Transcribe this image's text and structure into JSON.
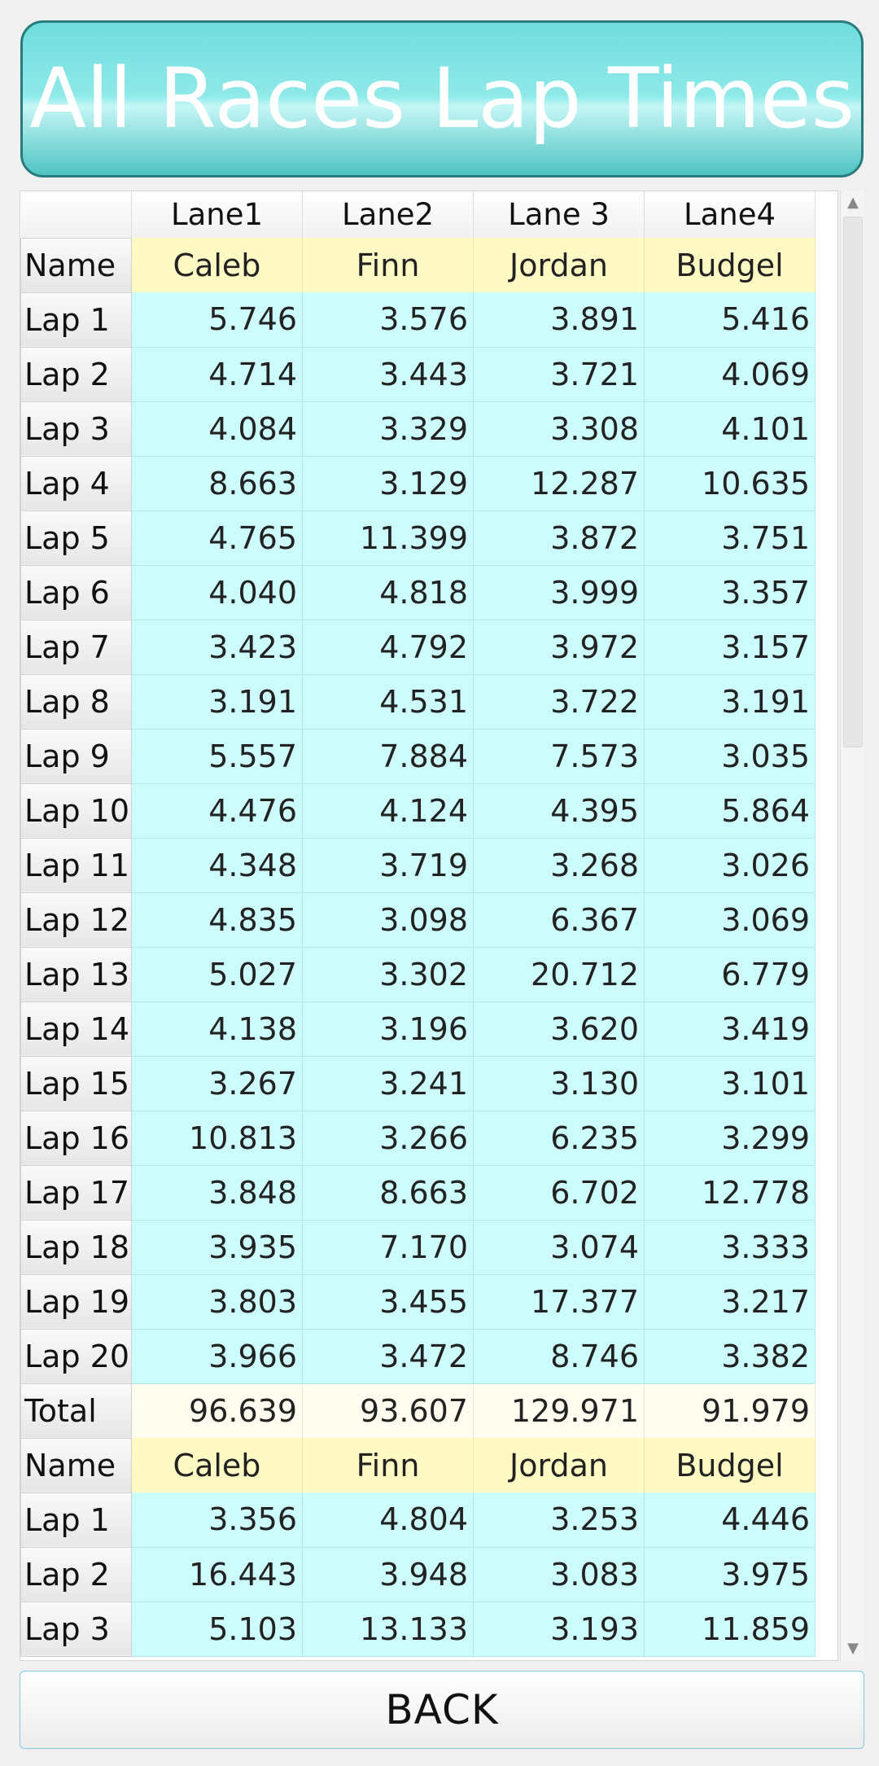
{
  "title": "All Races Lap Times",
  "columns": [
    "Lane1",
    "Lane2",
    "Lane 3",
    "Lane4"
  ],
  "name_row_label": "Name",
  "total_row_label": "Total",
  "races": [
    {
      "names": [
        "Caleb",
        "Finn",
        "Jordan",
        "Budgel"
      ],
      "laps": [
        {
          "label": "Lap 1",
          "values": [
            "5.746",
            "3.576",
            "3.891",
            "5.416"
          ]
        },
        {
          "label": "Lap 2",
          "values": [
            "4.714",
            "3.443",
            "3.721",
            "4.069"
          ]
        },
        {
          "label": "Lap 3",
          "values": [
            "4.084",
            "3.329",
            "3.308",
            "4.101"
          ]
        },
        {
          "label": "Lap 4",
          "values": [
            "8.663",
            "3.129",
            "12.287",
            "10.635"
          ]
        },
        {
          "label": "Lap 5",
          "values": [
            "4.765",
            "11.399",
            "3.872",
            "3.751"
          ]
        },
        {
          "label": "Lap 6",
          "values": [
            "4.040",
            "4.818",
            "3.999",
            "3.357"
          ]
        },
        {
          "label": "Lap 7",
          "values": [
            "3.423",
            "4.792",
            "3.972",
            "3.157"
          ]
        },
        {
          "label": "Lap 8",
          "values": [
            "3.191",
            "4.531",
            "3.722",
            "3.191"
          ]
        },
        {
          "label": "Lap 9",
          "values": [
            "5.557",
            "7.884",
            "7.573",
            "3.035"
          ]
        },
        {
          "label": "Lap 10",
          "values": [
            "4.476",
            "4.124",
            "4.395",
            "5.864"
          ]
        },
        {
          "label": "Lap 11",
          "values": [
            "4.348",
            "3.719",
            "3.268",
            "3.026"
          ]
        },
        {
          "label": "Lap 12",
          "values": [
            "4.835",
            "3.098",
            "6.367",
            "3.069"
          ]
        },
        {
          "label": "Lap 13",
          "values": [
            "5.027",
            "3.302",
            "20.712",
            "6.779"
          ]
        },
        {
          "label": "Lap 14",
          "values": [
            "4.138",
            "3.196",
            "3.620",
            "3.419"
          ]
        },
        {
          "label": "Lap 15",
          "values": [
            "3.267",
            "3.241",
            "3.130",
            "3.101"
          ]
        },
        {
          "label": "Lap 16",
          "values": [
            "10.813",
            "3.266",
            "6.235",
            "3.299"
          ]
        },
        {
          "label": "Lap 17",
          "values": [
            "3.848",
            "8.663",
            "6.702",
            "12.778"
          ]
        },
        {
          "label": "Lap 18",
          "values": [
            "3.935",
            "7.170",
            "3.074",
            "3.333"
          ]
        },
        {
          "label": "Lap 19",
          "values": [
            "3.803",
            "3.455",
            "17.377",
            "3.217"
          ]
        },
        {
          "label": "Lap 20",
          "values": [
            "3.966",
            "3.472",
            "8.746",
            "3.382"
          ]
        }
      ],
      "totals": [
        "96.639",
        "93.607",
        "129.971",
        "91.979"
      ]
    },
    {
      "names": [
        "Caleb",
        "Finn",
        "Jordan",
        "Budgel"
      ],
      "laps": [
        {
          "label": "Lap 1",
          "values": [
            "3.356",
            "4.804",
            "3.253",
            "4.446"
          ]
        },
        {
          "label": "Lap 2",
          "values": [
            "16.443",
            "3.948",
            "3.083",
            "3.975"
          ]
        },
        {
          "label": "Lap 3",
          "values": [
            "5.103",
            "13.133",
            "3.193",
            "11.859"
          ]
        }
      ]
    }
  ],
  "back_label": "BACK"
}
